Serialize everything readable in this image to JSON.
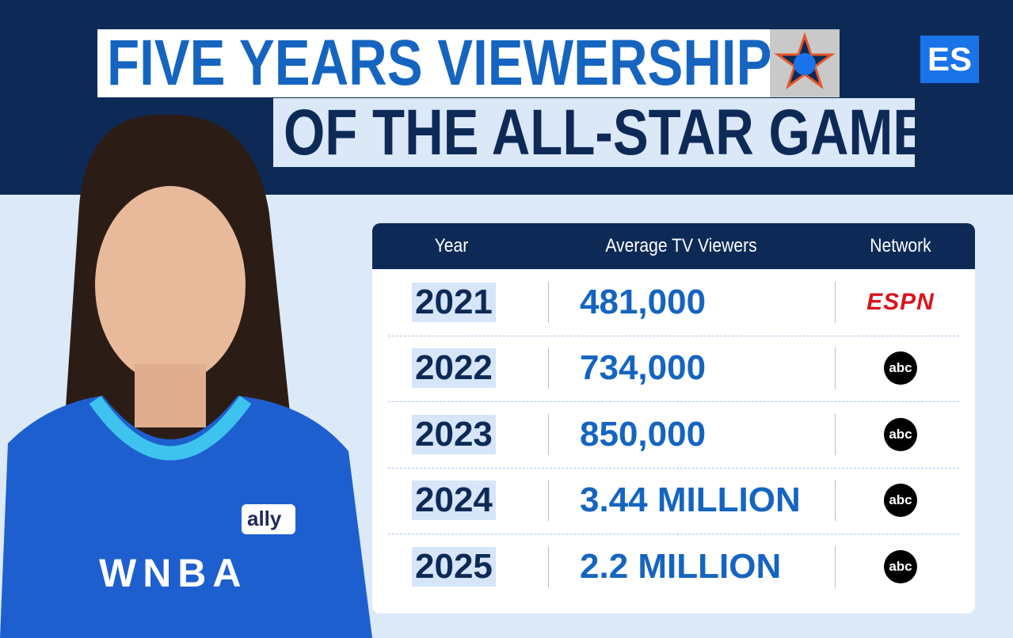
{
  "header": {
    "title_line1": "FIVE YEARS VIEWERSHIP",
    "title_line2": "OF THE ALL-STAR GAME",
    "logo": "ES"
  },
  "table": {
    "columns": [
      "Year",
      "Average TV Viewers",
      "Network"
    ],
    "rows": [
      [
        "2021",
        "481,000",
        "ESPN"
      ],
      [
        "2022",
        "734,000",
        "abc"
      ],
      [
        "2023",
        "850,000",
        "abc"
      ],
      [
        "2024",
        "3.44 MILLION",
        "abc"
      ],
      [
        "2025",
        "2.2 MILLION",
        "abc"
      ]
    ]
  },
  "photo": {
    "jersey_texts": [
      "ally",
      "WNBA"
    ]
  }
}
